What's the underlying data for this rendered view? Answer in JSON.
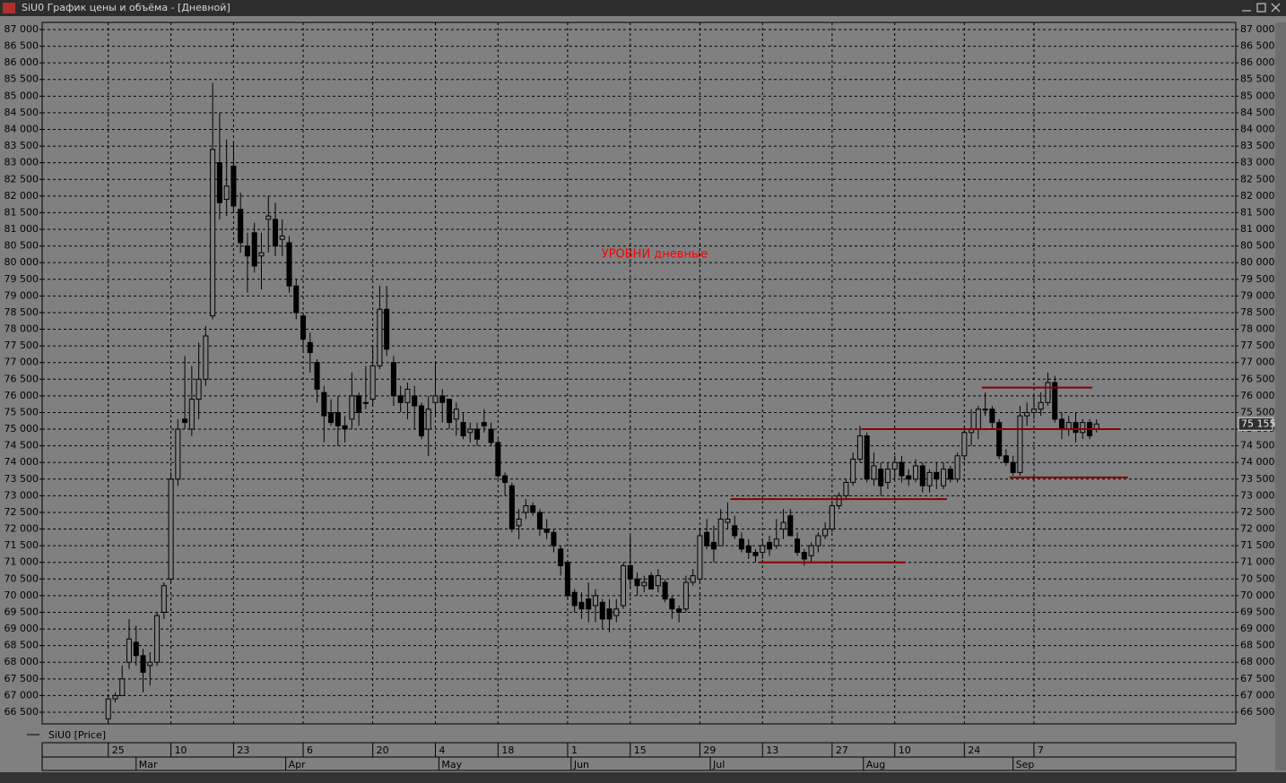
{
  "window_title": "SiU0 График цены и объёма - [Дневной]",
  "chart_data": {
    "type": "candlestick",
    "name": "SiU0 [Price]",
    "annotation": "УРОВНИ дневные",
    "bull_color": "#808080",
    "bear_color": "#000000",
    "level_color": "#8b0000",
    "grid": true,
    "ylim": [
      66150,
      87215
    ],
    "yticks": [
      {
        "value": 66500,
        "label": "66 500"
      },
      {
        "value": 67000,
        "label": "67 000"
      },
      {
        "value": 67500,
        "label": "67 500"
      },
      {
        "value": 68000,
        "label": "68 000"
      },
      {
        "value": 68500,
        "label": "68 500"
      },
      {
        "value": 69000,
        "label": "69 000"
      },
      {
        "value": 69500,
        "label": "69 500"
      },
      {
        "value": 70000,
        "label": "70 000"
      },
      {
        "value": 70500,
        "label": "70 500"
      },
      {
        "value": 71000,
        "label": "71 000"
      },
      {
        "value": 71500,
        "label": "71 500"
      },
      {
        "value": 72000,
        "label": "72 000"
      },
      {
        "value": 72500,
        "label": "72 500"
      },
      {
        "value": 73000,
        "label": "73 000"
      },
      {
        "value": 73500,
        "label": "73 500"
      },
      {
        "value": 74000,
        "label": "74 000"
      },
      {
        "value": 74500,
        "label": "74 500"
      },
      {
        "value": 75000,
        "label": "75 000"
      },
      {
        "value": 75500,
        "label": "75 500"
      },
      {
        "value": 76000,
        "label": "76 000"
      },
      {
        "value": 76500,
        "label": "76 500"
      },
      {
        "value": 77000,
        "label": "77 000"
      },
      {
        "value": 77500,
        "label": "77 500"
      },
      {
        "value": 78000,
        "label": "78 000"
      },
      {
        "value": 78500,
        "label": "78 500"
      },
      {
        "value": 79000,
        "label": "79 000"
      },
      {
        "value": 79500,
        "label": "79 500"
      },
      {
        "value": 80000,
        "label": "80 000"
      },
      {
        "value": 80500,
        "label": "80 500"
      },
      {
        "value": 81000,
        "label": "81 000"
      },
      {
        "value": 81500,
        "label": "81 500"
      },
      {
        "value": 82000,
        "label": "82 000"
      },
      {
        "value": 82500,
        "label": "82 500"
      },
      {
        "value": 83000,
        "label": "83 000"
      },
      {
        "value": 83500,
        "label": "83 500"
      },
      {
        "value": 84000,
        "label": "84 000"
      },
      {
        "value": 84500,
        "label": "84 500"
      },
      {
        "value": 85000,
        "label": "85 000"
      },
      {
        "value": 85500,
        "label": "85 500"
      },
      {
        "value": 86000,
        "label": "86 000"
      },
      {
        "value": 86500,
        "label": "86 500"
      },
      {
        "value": 87000,
        "label": "87 000"
      }
    ],
    "xlim": [
      -9.5,
      162
    ],
    "xticks": [
      {
        "value": 0,
        "label": "25"
      },
      {
        "value": 9,
        "label": "10"
      },
      {
        "value": 18,
        "label": "23"
      },
      {
        "value": 28,
        "label": "6"
      },
      {
        "value": 38,
        "label": "20"
      },
      {
        "value": 47,
        "label": "4"
      },
      {
        "value": 56,
        "label": "18"
      },
      {
        "value": 66,
        "label": "1"
      },
      {
        "value": 75,
        "label": "15"
      },
      {
        "value": 85,
        "label": "29"
      },
      {
        "value": 94,
        "label": "13"
      },
      {
        "value": 104,
        "label": "27"
      },
      {
        "value": 113,
        "label": "10"
      },
      {
        "value": 123,
        "label": "24"
      },
      {
        "value": 133,
        "label": "7"
      }
    ],
    "month_ticks": [
      {
        "value": 4,
        "label": "Mar"
      },
      {
        "value": 25.5,
        "label": "Apr"
      },
      {
        "value": 47.5,
        "label": "May"
      },
      {
        "value": 66.5,
        "label": "Jun"
      },
      {
        "value": 86.5,
        "label": "Jul"
      },
      {
        "value": 108.5,
        "label": "Aug"
      },
      {
        "value": 130,
        "label": "Sep"
      }
    ],
    "last": {
      "value": 75155,
      "label": "75 155"
    },
    "levels": [
      {
        "value": 76250,
        "x": [
          125.5,
          141.4
        ]
      },
      {
        "value": 75000,
        "x": [
          108.3,
          145.4
        ]
      },
      {
        "value": 73550,
        "x": [
          129.5,
          146.5
        ]
      },
      {
        "value": 72900,
        "x": [
          89.4,
          120.5
        ]
      },
      {
        "value": 71000,
        "x": [
          93.5,
          114.5
        ]
      }
    ],
    "candles": [
      [
        66300,
        67000,
        66200,
        66900
      ],
      [
        66900,
        67100,
        66800,
        67000
      ],
      [
        67000,
        67900,
        67000,
        67500
      ],
      [
        68000,
        69300,
        67800,
        68700
      ],
      [
        68600,
        69100,
        67900,
        68200
      ],
      [
        68200,
        68400,
        67100,
        67700
      ],
      [
        67900,
        68300,
        67300,
        68000
      ],
      [
        68000,
        69500,
        67900,
        69400
      ],
      [
        69500,
        70400,
        69300,
        70300
      ],
      [
        70500,
        73700,
        70400,
        73500
      ],
      [
        73500,
        75300,
        73300,
        75000
      ],
      [
        75300,
        77200,
        75000,
        75200
      ],
      [
        75000,
        76900,
        74800,
        75900
      ],
      [
        75900,
        77600,
        75300,
        76500
      ],
      [
        76500,
        78100,
        76300,
        77800
      ],
      [
        78400,
        85400,
        78300,
        83400
      ],
      [
        83000,
        84500,
        81300,
        81800
      ],
      [
        81900,
        83700,
        81400,
        82300
      ],
      [
        82900,
        83600,
        81500,
        81700
      ],
      [
        81600,
        82100,
        80300,
        80600
      ],
      [
        80500,
        80900,
        79100,
        80200
      ],
      [
        80900,
        81200,
        79700,
        79900
      ],
      [
        80200,
        80900,
        79200,
        80300
      ],
      [
        81300,
        82000,
        80300,
        81400
      ],
      [
        81300,
        81800,
        80200,
        80500
      ],
      [
        80700,
        81300,
        80200,
        80800
      ],
      [
        80600,
        80800,
        79100,
        79300
      ],
      [
        79300,
        79500,
        78300,
        78500
      ],
      [
        78400,
        78500,
        77300,
        77700
      ],
      [
        77600,
        77900,
        76700,
        77300
      ],
      [
        77000,
        77100,
        75800,
        76200
      ],
      [
        76100,
        76300,
        74600,
        75400
      ],
      [
        75500,
        75900,
        75100,
        75200
      ],
      [
        75500,
        76000,
        74500,
        75100
      ],
      [
        75100,
        75400,
        74600,
        75000
      ],
      [
        75300,
        76700,
        75000,
        76000
      ],
      [
        76000,
        76100,
        75100,
        75500
      ],
      [
        75800,
        76900,
        75600,
        75800
      ],
      [
        75900,
        77500,
        75700,
        76900
      ],
      [
        76900,
        79300,
        76800,
        78600
      ],
      [
        78600,
        79300,
        77200,
        77400
      ],
      [
        77000,
        77200,
        75700,
        76000
      ],
      [
        76000,
        76300,
        75500,
        75800
      ],
      [
        75800,
        76400,
        75300,
        76200
      ],
      [
        76000,
        76300,
        75000,
        75700
      ],
      [
        75700,
        75800,
        74700,
        74800
      ],
      [
        75000,
        76000,
        74200,
        75600
      ],
      [
        75800,
        77000,
        75400,
        76000
      ],
      [
        76000,
        76200,
        75200,
        75800
      ],
      [
        75900,
        75900,
        75000,
        75200
      ],
      [
        75300,
        75800,
        74800,
        75600
      ],
      [
        75200,
        75500,
        74700,
        74800
      ],
      [
        74900,
        75200,
        74600,
        75000
      ],
      [
        75000,
        75200,
        74500,
        74700
      ],
      [
        75200,
        75600,
        74900,
        75100
      ],
      [
        75000,
        75200,
        74500,
        74600
      ],
      [
        74600,
        74700,
        73500,
        73600
      ],
      [
        73600,
        73700,
        73000,
        73400
      ],
      [
        73300,
        73400,
        71900,
        72000
      ],
      [
        72100,
        72600,
        71700,
        72300
      ],
      [
        72500,
        72900,
        72300,
        72700
      ],
      [
        72700,
        72800,
        72400,
        72500
      ],
      [
        72500,
        72600,
        71800,
        72000
      ],
      [
        72000,
        72300,
        71700,
        71900
      ],
      [
        71900,
        72000,
        71300,
        71500
      ],
      [
        71400,
        71500,
        70600,
        70900
      ],
      [
        71000,
        71000,
        69900,
        70000
      ],
      [
        70100,
        70200,
        69500,
        69700
      ],
      [
        69800,
        70100,
        69300,
        69600
      ],
      [
        69900,
        70400,
        69200,
        69600
      ],
      [
        69700,
        70200,
        69200,
        70000
      ],
      [
        69800,
        69900,
        69000,
        69300
      ],
      [
        69600,
        69900,
        68900,
        69300
      ],
      [
        69400,
        69900,
        69200,
        69600
      ],
      [
        69700,
        71000,
        69600,
        70900
      ],
      [
        70900,
        71800,
        70200,
        70500
      ],
      [
        70500,
        70700,
        70000,
        70300
      ],
      [
        70300,
        70600,
        70100,
        70400
      ],
      [
        70600,
        70700,
        70200,
        70200
      ],
      [
        70300,
        70800,
        70100,
        70600
      ],
      [
        70400,
        70500,
        69800,
        69900
      ],
      [
        69900,
        70000,
        69300,
        69600
      ],
      [
        69600,
        69700,
        69200,
        69500
      ],
      [
        69600,
        70600,
        69500,
        70400
      ],
      [
        70400,
        70800,
        70300,
        70600
      ],
      [
        70500,
        72000,
        70400,
        71800
      ],
      [
        71900,
        72300,
        71400,
        71500
      ],
      [
        71600,
        72100,
        71000,
        71400
      ],
      [
        71500,
        72600,
        71500,
        72300
      ],
      [
        72200,
        72800,
        72000,
        72300
      ],
      [
        72100,
        72400,
        71700,
        71800
      ],
      [
        71700,
        71900,
        71300,
        71400
      ],
      [
        71500,
        71700,
        71100,
        71300
      ],
      [
        71300,
        71400,
        71000,
        71200
      ],
      [
        71300,
        71700,
        71100,
        71500
      ],
      [
        71600,
        71800,
        71200,
        71400
      ],
      [
        71500,
        72300,
        71400,
        71700
      ],
      [
        72000,
        72600,
        71700,
        72200
      ],
      [
        72400,
        72600,
        71800,
        71800
      ],
      [
        71700,
        71900,
        71200,
        71300
      ],
      [
        71300,
        71400,
        70900,
        71100
      ],
      [
        71200,
        71600,
        71000,
        71500
      ],
      [
        71500,
        71900,
        71300,
        71800
      ],
      [
        71800,
        72200,
        71700,
        72000
      ],
      [
        72000,
        72800,
        71900,
        72700
      ],
      [
        72700,
        73100,
        72600,
        73000
      ],
      [
        73000,
        73500,
        72900,
        73400
      ],
      [
        73400,
        74300,
        73300,
        74100
      ],
      [
        74100,
        75100,
        74000,
        74800
      ],
      [
        74800,
        74900,
        73400,
        73500
      ],
      [
        73500,
        74300,
        73300,
        73900
      ],
      [
        73800,
        74000,
        73000,
        73300
      ],
      [
        73400,
        74000,
        73200,
        73800
      ],
      [
        73800,
        74200,
        73500,
        74000
      ],
      [
        74000,
        74200,
        73400,
        73600
      ],
      [
        73600,
        73800,
        73300,
        73500
      ],
      [
        73500,
        74100,
        73400,
        73900
      ],
      [
        73900,
        74000,
        73100,
        73300
      ],
      [
        73300,
        73800,
        73100,
        73700
      ],
      [
        73700,
        74000,
        73200,
        73500
      ],
      [
        73300,
        74000,
        73200,
        73800
      ],
      [
        73800,
        73900,
        73400,
        73500
      ],
      [
        73500,
        74300,
        73400,
        74200
      ],
      [
        74200,
        75100,
        74100,
        74900
      ],
      [
        74900,
        75600,
        74500,
        75000
      ],
      [
        75000,
        75700,
        74700,
        75600
      ],
      [
        75600,
        76100,
        75400,
        75600
      ],
      [
        75600,
        75700,
        75000,
        75200
      ],
      [
        75200,
        75300,
        74100,
        74200
      ],
      [
        74200,
        74400,
        73900,
        74000
      ],
      [
        74000,
        74200,
        73600,
        73700
      ],
      [
        73700,
        75700,
        73600,
        75400
      ],
      [
        75400,
        75800,
        75100,
        75500
      ],
      [
        75500,
        76000,
        75300,
        75600
      ],
      [
        75600,
        76100,
        75400,
        75800
      ],
      [
        75800,
        76700,
        75700,
        76400
      ],
      [
        76400,
        76600,
        75200,
        75300
      ],
      [
        75300,
        75500,
        74700,
        75000
      ],
      [
        75000,
        75400,
        74800,
        75200
      ],
      [
        75200,
        75500,
        74600,
        74900
      ],
      [
        74900,
        75300,
        74700,
        75200
      ],
      [
        75200,
        75300,
        74700,
        74800
      ],
      [
        75000,
        75300,
        74900,
        75155
      ]
    ]
  }
}
